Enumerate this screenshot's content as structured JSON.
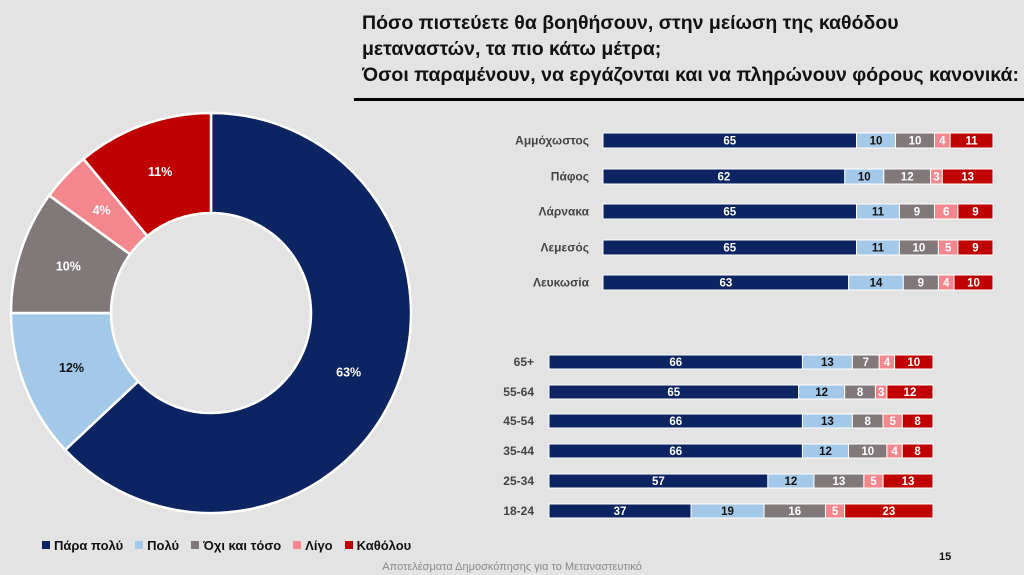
{
  "title": {
    "line1": "Πόσο πιστεύετε θα βοηθήσουν, στην μείωση της καθόδου",
    "line2": "μεταναστών, τα πιο κάτω μέτρα;",
    "line3": "Όσοι παραμένουν, να εργάζονται και να πληρώνουν φόρους κανονικά:"
  },
  "colors": {
    "para_poly": "#0c2461",
    "poly": "#a4c8e8",
    "ochi_kai_toso": "#807879",
    "ligo": "#f4878e",
    "katholou": "#c00000"
  },
  "legend": [
    {
      "label": "Πάρα πολύ",
      "color": "#0c2461"
    },
    {
      "label": "Πολύ",
      "color": "#a4c8e8"
    },
    {
      "label": "Όχι και τόσο",
      "color": "#807879"
    },
    {
      "label": "Λίγο",
      "color": "#f4878e"
    },
    {
      "label": "Καθόλου",
      "color": "#c00000"
    }
  ],
  "chart_data": [
    {
      "type": "pie",
      "variant": "donut",
      "labels": [
        "Πάρα πολύ",
        "Πολύ",
        "Όχι και τόσο",
        "Λίγο",
        "Καθόλου"
      ],
      "values": [
        63,
        12,
        10,
        4,
        11
      ],
      "data_labels": [
        "63%",
        "12%",
        "10%",
        "4%",
        "11%"
      ]
    },
    {
      "type": "bar",
      "orientation": "horizontal",
      "stacked": true,
      "categories": [
        "Αμμόχωστος",
        "Πάφος",
        "Λάρνακα",
        "Λεμεσός",
        "Λευκωσία"
      ],
      "series": [
        {
          "name": "Πάρα πολύ",
          "values": [
            65,
            62,
            65,
            65,
            63
          ]
        },
        {
          "name": "Πολύ",
          "values": [
            10,
            10,
            11,
            11,
            14
          ]
        },
        {
          "name": "Όχι και τόσο",
          "values": [
            10,
            12,
            9,
            10,
            9
          ]
        },
        {
          "name": "Λίγο",
          "values": [
            4,
            3,
            6,
            5,
            4
          ]
        },
        {
          "name": "Καθόλου",
          "values": [
            11,
            13,
            9,
            9,
            10
          ]
        }
      ]
    },
    {
      "type": "bar",
      "orientation": "horizontal",
      "stacked": true,
      "categories": [
        "65+",
        "55-64",
        "45-54",
        "35-44",
        "25-34",
        "18-24"
      ],
      "series": [
        {
          "name": "Πάρα πολύ",
          "values": [
            66,
            65,
            66,
            66,
            57,
            37
          ]
        },
        {
          "name": "Πολύ",
          "values": [
            13,
            12,
            13,
            12,
            12,
            19
          ]
        },
        {
          "name": "Όχι και τόσο",
          "values": [
            7,
            8,
            8,
            10,
            13,
            16
          ]
        },
        {
          "name": "Λίγο",
          "values": [
            4,
            3,
            5,
            4,
            5,
            5
          ]
        },
        {
          "name": "Καθόλου",
          "values": [
            10,
            12,
            8,
            8,
            13,
            23
          ]
        }
      ]
    }
  ],
  "page_number": "15",
  "footer": "Αποτελέσματα Δημοσκόπησης για το Μεταναστευτικό"
}
